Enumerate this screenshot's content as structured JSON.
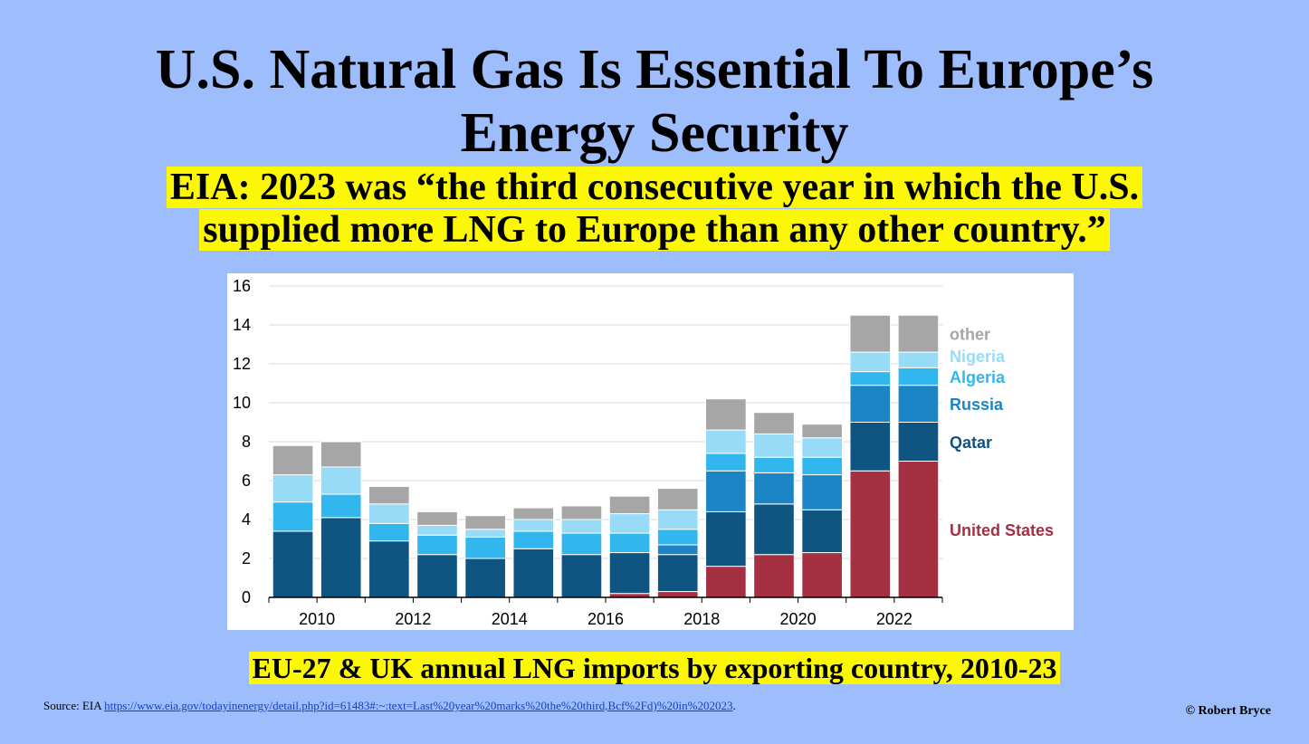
{
  "slide": {
    "title_line1": "U.S. Natural Gas Is Essential To Europe’s",
    "title_line2": "Energy Security",
    "subtitle_line1": "EIA: 2023 was “the third consecutive year in which the U.S.",
    "subtitle_line2": "supplied more LNG to Europe than any other country.”",
    "caption": "EU-27 & UK annual LNG imports by exporting country, 2010-23",
    "source_label": "Source: EIA",
    "source_url": "https://www.eia.gov/todayinenergy/detail.php?id=61483#:~:text=Last%20year%20marks%20the%20third,Bcf%2Fd)%20in%202023",
    "source_trailing": ".",
    "credit": "© Robert Bryce"
  },
  "chart_data": {
    "type": "bar",
    "stacked": true,
    "categories": [
      "2010",
      "2011",
      "2012",
      "2013",
      "2014",
      "2015",
      "2016",
      "2017",
      "2018",
      "2019",
      "2020",
      "2021",
      "2022",
      "2023"
    ],
    "x_tick_labels": [
      "2010",
      "2012",
      "2014",
      "2016",
      "2018",
      "2020",
      "2022"
    ],
    "y_ticks": [
      0,
      2,
      4,
      6,
      8,
      10,
      12,
      14,
      16
    ],
    "ylim": [
      0,
      16
    ],
    "grid": "horizontal",
    "legend_placement": "right",
    "series": [
      {
        "name": "United States",
        "color": "#a53042",
        "values": [
          0,
          0,
          0,
          0,
          0,
          0,
          0,
          0.2,
          0.3,
          1.6,
          2.2,
          2.3,
          6.5,
          7.0
        ]
      },
      {
        "name": "Qatar",
        "color": "#0f5582",
        "values": [
          3.4,
          4.1,
          2.9,
          2.2,
          2.0,
          2.5,
          2.2,
          2.1,
          1.9,
          2.8,
          2.6,
          2.2,
          2.5,
          2.0
        ]
      },
      {
        "name": "Russia",
        "color": "#1c85c6",
        "values": [
          0,
          0,
          0,
          0,
          0,
          0,
          0,
          0,
          0.5,
          2.1,
          1.6,
          1.8,
          1.9,
          1.9
        ]
      },
      {
        "name": "Algeria",
        "color": "#32b6ee",
        "values": [
          1.5,
          1.2,
          0.9,
          1.0,
          1.1,
          0.9,
          1.1,
          1.0,
          0.8,
          0.9,
          0.8,
          0.9,
          0.7,
          0.9
        ]
      },
      {
        "name": "Nigeria",
        "color": "#98dbf7",
        "values": [
          1.4,
          1.4,
          1.0,
          0.5,
          0.4,
          0.6,
          0.7,
          1.0,
          1.0,
          1.2,
          1.2,
          1.0,
          1.0,
          0.8
        ]
      },
      {
        "name": "other",
        "color": "#a6a6a6",
        "values": [
          1.5,
          1.3,
          0.9,
          0.7,
          0.7,
          0.6,
          0.7,
          0.9,
          1.1,
          1.6,
          1.1,
          0.7,
          1.9,
          1.9
        ]
      }
    ]
  }
}
